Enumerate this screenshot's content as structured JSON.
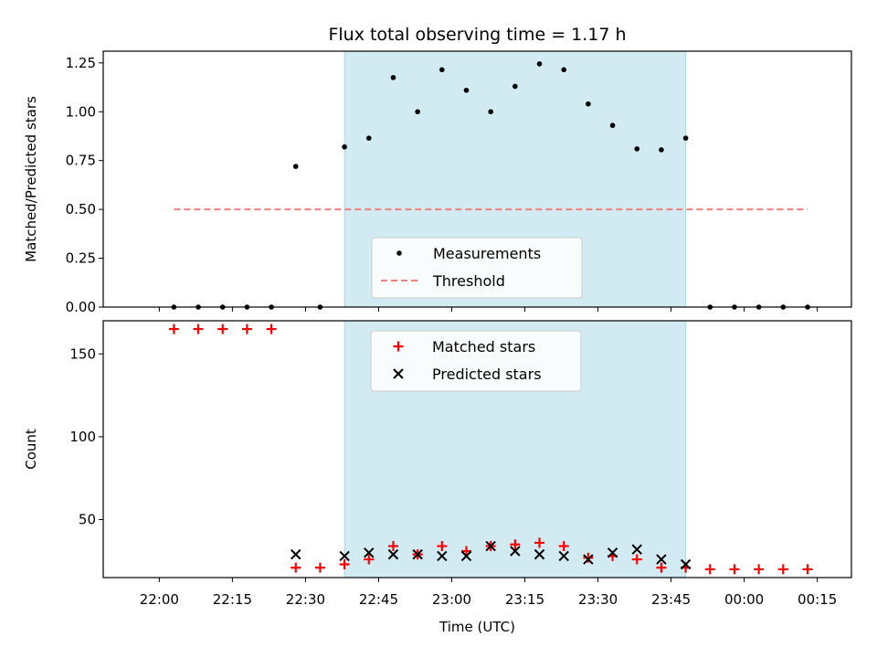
{
  "chart_data": [
    {
      "type": "scatter",
      "title": "Flux total observing time = 1.17 h",
      "ylabel": "Matched/Predicted stars",
      "xlabel": "",
      "ylim": [
        0,
        1.31
      ],
      "yticks": [
        "0.00",
        "0.25",
        "0.50",
        "0.75",
        "1.00",
        "1.25"
      ],
      "shaded_interval": [
        "22:38",
        "23:48"
      ],
      "shade_color": "#add8e6",
      "series": [
        {
          "name": "Measurements",
          "marker": "dot",
          "color": "#000000",
          "x": [
            "22:03",
            "22:08",
            "22:13",
            "22:18",
            "22:23",
            "22:28",
            "22:33",
            "22:38",
            "22:43",
            "22:48",
            "22:53",
            "22:58",
            "23:03",
            "23:08",
            "23:13",
            "23:18",
            "23:23",
            "23:28",
            "23:33",
            "23:38",
            "23:43",
            "23:48",
            "23:53",
            "23:58",
            "00:03",
            "00:08",
            "00:13"
          ],
          "y": [
            0,
            0,
            0,
            0,
            0,
            0.72,
            0,
            0.82,
            0.865,
            1.175,
            1.0,
            1.215,
            1.11,
            1.0,
            1.13,
            1.245,
            1.215,
            1.04,
            0.93,
            0.81,
            0.805,
            0.865,
            0,
            0,
            0,
            0,
            0
          ]
        },
        {
          "name": "Threshold",
          "line": "dashed",
          "color": "#f08080",
          "x": [
            "22:03",
            "00:13"
          ],
          "y": [
            0.5,
            0.5
          ]
        }
      ],
      "legend_position": "lower-center"
    },
    {
      "type": "scatter",
      "title": "",
      "ylabel": "Count",
      "xlabel": "Time (UTC)",
      "ylim": [
        15,
        170
      ],
      "yticks": [
        "50",
        "100",
        "150"
      ],
      "xticks": [
        "22:00",
        "22:15",
        "22:30",
        "22:45",
        "23:00",
        "23:15",
        "23:30",
        "23:45",
        "00:00",
        "00:15"
      ],
      "shaded_interval": [
        "22:38",
        "23:48"
      ],
      "shade_color": "#add8e6",
      "series": [
        {
          "name": "Matched stars",
          "marker": "plus",
          "color": "#ff0000",
          "x": [
            "22:03",
            "22:08",
            "22:13",
            "22:18",
            "22:23",
            "22:28",
            "22:33",
            "22:38",
            "22:43",
            "22:48",
            "22:53",
            "22:58",
            "23:03",
            "23:08",
            "23:13",
            "23:18",
            "23:23",
            "23:28",
            "23:33",
            "23:38",
            "23:43",
            "23:48",
            "23:53",
            "23:58",
            "00:03",
            "00:08",
            "00:13"
          ],
          "y": [
            165,
            165,
            165,
            165,
            165,
            21,
            21,
            23,
            26,
            34,
            29,
            34,
            31,
            34,
            35,
            36,
            34,
            27,
            28,
            26,
            21,
            21,
            20,
            20,
            20,
            20,
            20
          ]
        },
        {
          "name": "Predicted stars",
          "marker": "x",
          "color": "#000000",
          "x": [
            "22:28",
            "22:38",
            "22:43",
            "22:48",
            "22:53",
            "22:58",
            "23:03",
            "23:08",
            "23:13",
            "23:18",
            "23:23",
            "23:28",
            "23:33",
            "23:38",
            "23:43",
            "23:48"
          ],
          "y": [
            29,
            28,
            30,
            29,
            29,
            28,
            28,
            34,
            31,
            29,
            28,
            26,
            30,
            32,
            26,
            23
          ]
        }
      ],
      "legend_position": "upper-center"
    }
  ]
}
